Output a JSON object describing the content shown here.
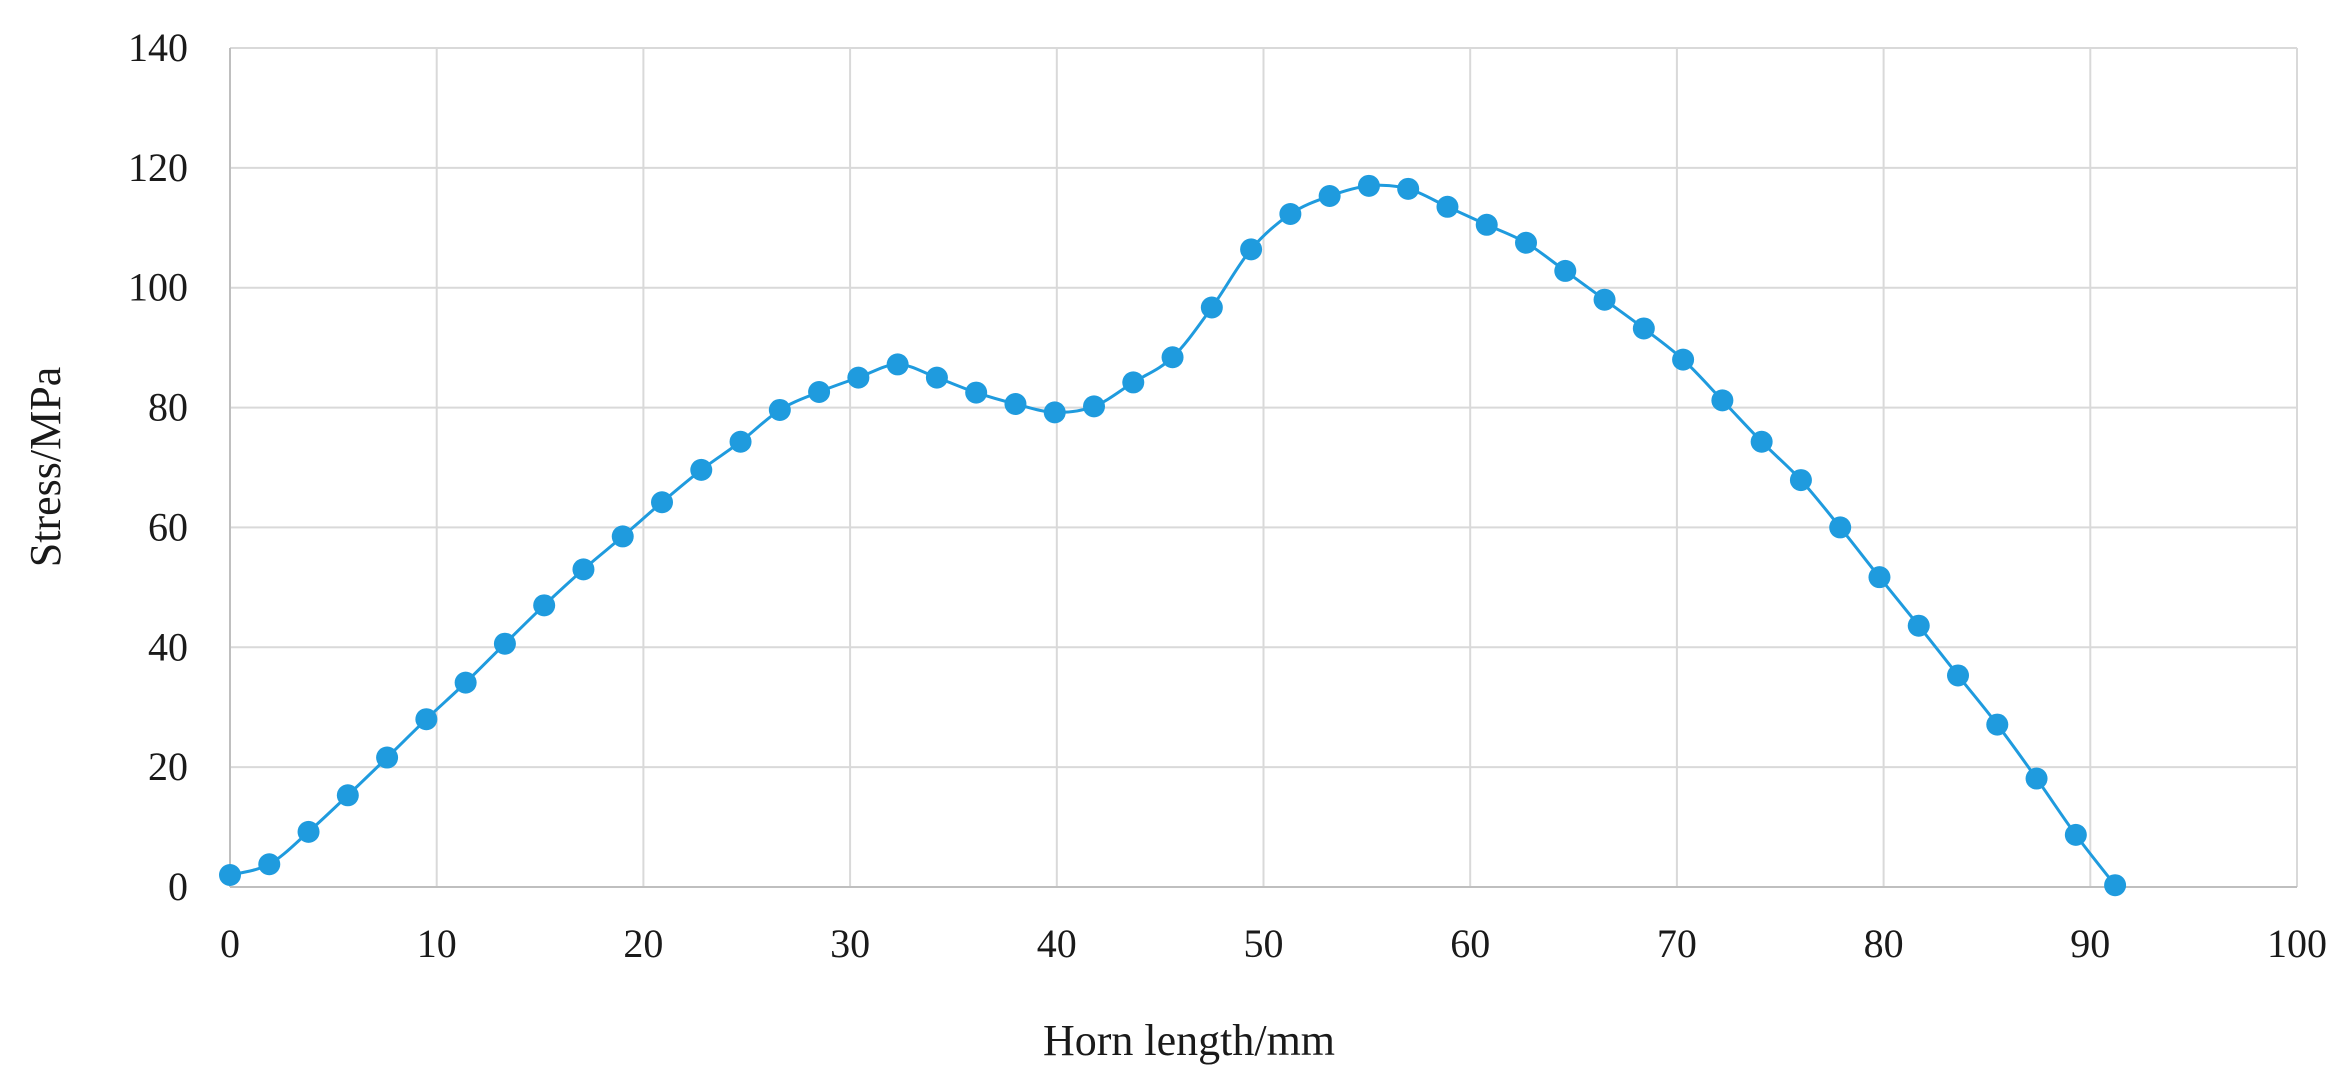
{
  "chart_data": {
    "type": "line",
    "title": "",
    "xlabel": "Horn length/mm",
    "ylabel": "Stress/MPa",
    "xlim": [
      0,
      100
    ],
    "ylim": [
      0,
      140
    ],
    "xticks": [
      0,
      10,
      20,
      30,
      40,
      50,
      60,
      70,
      80,
      90,
      100
    ],
    "yticks": [
      0,
      20,
      40,
      60,
      80,
      100,
      120,
      140
    ],
    "grid": true,
    "legend": "none",
    "series_color": "#1f9bde",
    "series": [
      {
        "marker": "circle",
        "x": [
          0,
          1.9,
          3.8,
          5.7,
          7.6,
          9.5,
          11.4,
          13.3,
          15.2,
          17.1,
          19.0,
          20.9,
          22.8,
          24.7,
          26.6,
          28.5,
          30.4,
          32.3,
          34.2,
          36.1,
          38.0,
          39.9,
          41.8,
          43.7,
          45.6,
          47.5,
          49.4,
          51.3,
          53.2,
          55.1,
          57.0,
          58.9,
          60.8,
          62.7,
          64.6,
          66.5,
          68.4,
          70.3,
          72.2,
          74.1,
          76.0,
          77.9,
          79.8,
          81.7,
          83.6,
          85.5,
          87.4,
          89.3,
          91.2
        ],
        "y": [
          2,
          3.8,
          9.2,
          15.3,
          21.6,
          28.0,
          34.1,
          40.6,
          47.0,
          53.0,
          58.5,
          64.2,
          69.6,
          74.3,
          79.6,
          82.6,
          85.0,
          87.2,
          85.0,
          82.5,
          80.6,
          79.2,
          80.2,
          84.2,
          88.4,
          96.7,
          106.4,
          112.3,
          115.3,
          117.0,
          116.5,
          113.5,
          110.5,
          107.5,
          102.8,
          98.0,
          93.2,
          88.0,
          81.2,
          74.3,
          67.9,
          60.0,
          51.7,
          43.6,
          35.3,
          27.1,
          18.1,
          8.7,
          0.3
        ]
      }
    ]
  }
}
